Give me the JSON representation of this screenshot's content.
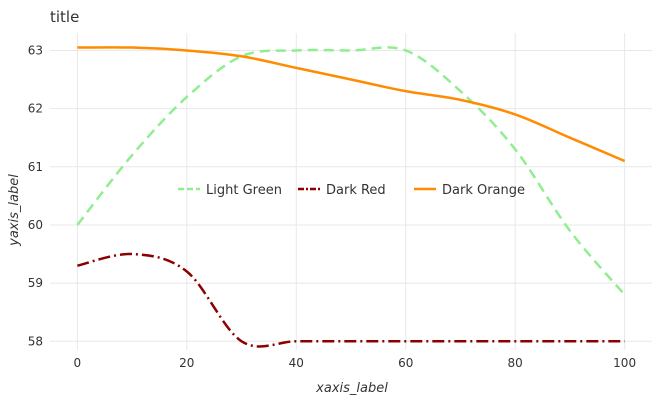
{
  "chart_data": {
    "type": "line",
    "title": "title",
    "xlabel": "xaxis_label",
    "ylabel": "yaxis_label",
    "xlim": [
      -5,
      105
    ],
    "ylim": [
      57.85,
      63.3
    ],
    "xticks": [
      0,
      20,
      40,
      60,
      80,
      100
    ],
    "yticks": [
      58,
      59,
      60,
      61,
      62,
      63
    ],
    "grid": true,
    "legend_position": "center",
    "series": [
      {
        "name": "Light Green",
        "color": "#90ee90",
        "dash": "10 6",
        "x": [
          0,
          10,
          20,
          30,
          40,
          50,
          60,
          70,
          80,
          90,
          100
        ],
        "y": [
          60.0,
          61.2,
          62.2,
          62.9,
          63.0,
          63.0,
          63.0,
          62.3,
          61.3,
          59.9,
          58.8
        ]
      },
      {
        "name": "Dark Red",
        "color": "#8b0000",
        "dash": "12 4 2 4",
        "x": [
          0,
          10,
          20,
          30,
          40,
          50,
          60,
          70,
          80,
          90,
          100
        ],
        "y": [
          59.3,
          59.5,
          59.2,
          58.0,
          58.0,
          58.0,
          58.0,
          58.0,
          58.0,
          58.0,
          58.0
        ]
      },
      {
        "name": "Dark Orange",
        "color": "#ff8c00",
        "dash": "",
        "x": [
          0,
          10,
          20,
          30,
          40,
          50,
          60,
          70,
          80,
          90,
          100
        ],
        "y": [
          63.05,
          63.05,
          63.0,
          62.9,
          62.7,
          62.5,
          62.3,
          62.15,
          61.9,
          61.5,
          61.1
        ]
      }
    ]
  }
}
